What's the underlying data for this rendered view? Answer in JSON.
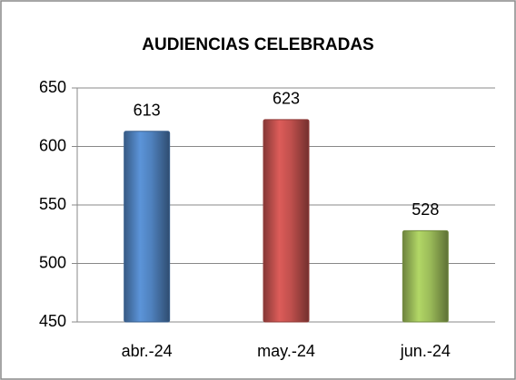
{
  "chart_data": {
    "type": "bar",
    "title": "AUDIENCIAS CELEBRADAS",
    "categories": [
      "abr.-24",
      "may.-24",
      "jun.-24"
    ],
    "values": [
      613,
      623,
      528
    ],
    "colors": [
      "#4f81bd",
      "#c0504d",
      "#9bbb59"
    ],
    "ylim": [
      450,
      650
    ],
    "yticks": [
      450,
      500,
      550,
      600,
      650
    ],
    "grid": true
  }
}
